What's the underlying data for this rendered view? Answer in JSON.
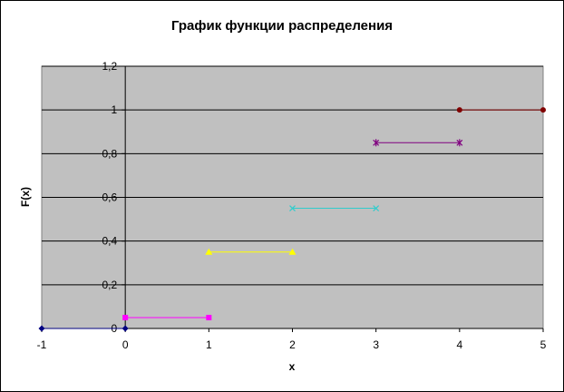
{
  "chart_data": {
    "type": "line",
    "title": "График функции распределения",
    "xlabel": "x",
    "ylabel": "F(x)",
    "xlim": [
      -1,
      5
    ],
    "ylim": [
      0,
      1.2
    ],
    "x_ticks": [
      "-1",
      "0",
      "1",
      "2",
      "3",
      "4",
      "5"
    ],
    "y_ticks": [
      "0",
      "0,2",
      "0,4",
      "0,6",
      "0,8",
      "1",
      "1,2"
    ],
    "grid": "horizontal",
    "legend": "none",
    "plot_background": "#c0c0c0",
    "series": [
      {
        "x": [
          -1,
          0
        ],
        "y": [
          0,
          0
        ],
        "color": "#000080",
        "marker": "diamond"
      },
      {
        "x": [
          0,
          1
        ],
        "y": [
          0.05,
          0.05
        ],
        "color": "#ff00ff",
        "marker": "square"
      },
      {
        "x": [
          1,
          2
        ],
        "y": [
          0.35,
          0.35
        ],
        "color": "#ffff00",
        "marker": "triangle"
      },
      {
        "x": [
          2,
          3
        ],
        "y": [
          0.55,
          0.55
        ],
        "color": "#33cccc",
        "marker": "x"
      },
      {
        "x": [
          3,
          4
        ],
        "y": [
          0.85,
          0.85
        ],
        "color": "#800080",
        "marker": "star"
      },
      {
        "x": [
          4,
          5
        ],
        "y": [
          1,
          1
        ],
        "color": "#800000",
        "marker": "circle"
      }
    ]
  }
}
